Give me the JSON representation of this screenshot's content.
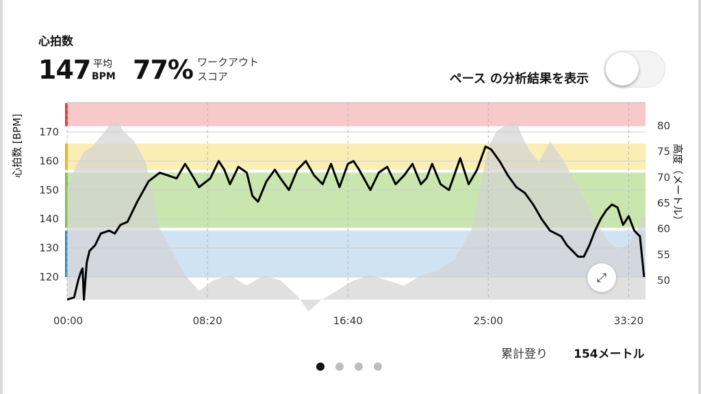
{
  "header": {
    "title": "心拍数",
    "avg_value": "147",
    "avg_label_top": "平均",
    "avg_label_bottom": "BPM",
    "score_value": "77%",
    "score_label_line1": "ワークアウト",
    "score_label_line2": "スコア",
    "pace_toggle_label": "ペース の分析結果を表示",
    "pace_toggle_on": false
  },
  "footer": {
    "cumulative_climb_label": "累計登り",
    "cumulative_climb_value": "154メートル"
  },
  "pager": {
    "count": 4,
    "active_index": 0
  },
  "expand_icon": "expand-arrows-icon",
  "chart_data": {
    "type": "line",
    "ylabel": "心拍数 [BPM]",
    "y2label": "高度（メートル）",
    "ylim": [
      112,
      177
    ],
    "y2lim": [
      45,
      82
    ],
    "x_ticks": [
      "00:00",
      "08:20",
      "16:40",
      "25:00",
      "33:20"
    ],
    "x_tick_seconds": [
      0,
      500,
      1000,
      1500,
      2000
    ],
    "x_range_seconds": [
      0,
      2060
    ],
    "y_ticks": [
      120,
      130,
      140,
      150,
      160,
      170
    ],
    "y2_ticks": [
      50,
      55,
      60,
      65,
      70,
      75,
      80
    ],
    "zones": [
      {
        "name": "red",
        "min": 172,
        "max": 181,
        "color": "#f7c9c9"
      },
      {
        "name": "yellow",
        "min": 157,
        "max": 166,
        "color": "#fbeeb4"
      },
      {
        "name": "green",
        "min": 137,
        "max": 156,
        "color": "#c9e6ae"
      },
      {
        "name": "blue",
        "min": 120,
        "max": 136,
        "color": "#cfe3f3"
      }
    ],
    "zone_marker_colors": [
      "#e53935",
      "#f2b705",
      "#7cc242",
      "#2d86c9"
    ],
    "series": [
      {
        "role": "heart_rate",
        "color": "#000000",
        "x": [
          0,
          25,
          40,
          50,
          55,
          60,
          70,
          80,
          100,
          110,
          120,
          150,
          170,
          190,
          215,
          230,
          250,
          290,
          330,
          360,
          390,
          420,
          440,
          470,
          510,
          540,
          560,
          580,
          610,
          640,
          660,
          680,
          710,
          740,
          760,
          790,
          820,
          850,
          880,
          910,
          940,
          970,
          1000,
          1020,
          1040,
          1080,
          1110,
          1140,
          1170,
          1200,
          1230,
          1260,
          1280,
          1300,
          1330,
          1360,
          1400,
          1430,
          1460,
          1490,
          1510,
          1540,
          1570,
          1600,
          1630,
          1660,
          1690,
          1720,
          1760,
          1780,
          1800,
          1820,
          1840,
          1860,
          1880,
          1900,
          1920,
          1940,
          1960,
          1980,
          2000,
          2020,
          2040,
          2055
        ],
        "y": [
          111,
          113,
          119,
          122,
          123,
          111,
          125,
          129,
          131,
          133,
          135,
          136,
          135,
          138,
          139,
          142,
          146,
          153,
          156,
          155,
          154,
          159,
          156,
          151,
          154,
          160,
          157,
          152,
          158,
          156,
          148,
          146,
          153,
          157,
          154,
          150,
          157,
          160,
          155,
          152,
          159,
          151,
          159,
          160,
          157,
          150,
          156,
          158,
          152,
          155,
          159,
          152,
          154,
          159,
          152,
          150,
          161,
          152,
          157,
          165,
          164,
          160,
          155,
          151,
          149,
          145,
          140,
          136,
          134,
          131,
          129,
          127,
          127,
          131,
          136,
          140,
          143,
          145,
          144,
          138,
          141,
          136,
          134,
          120
        ]
      },
      {
        "role": "altitude",
        "color": "#d3d3d3",
        "x": [
          0,
          30,
          60,
          90,
          120,
          150,
          180,
          200,
          240,
          280,
          300,
          330,
          380,
          420,
          470,
          520,
          580,
          640,
          700,
          760,
          820,
          860,
          900,
          960,
          1020,
          1080,
          1140,
          1200,
          1260,
          1320,
          1380,
          1440,
          1470,
          1500,
          1530,
          1560,
          1600,
          1620,
          1650,
          1680,
          1720,
          1760,
          1800,
          1840,
          1880,
          1920,
          1960,
          2000,
          2030,
          2060
        ],
        "y": [
          68,
          72,
          75,
          76,
          78,
          80,
          81,
          79,
          77,
          73,
          68,
          60,
          55,
          51,
          48,
          50,
          51,
          49,
          51,
          50,
          47,
          44,
          46,
          48,
          50,
          51,
          50,
          49,
          51,
          52,
          54,
          60,
          68,
          76,
          79,
          80,
          81,
          78,
          75,
          73,
          77,
          74,
          70,
          66,
          62,
          58,
          56,
          57,
          60,
          63
        ]
      }
    ]
  }
}
